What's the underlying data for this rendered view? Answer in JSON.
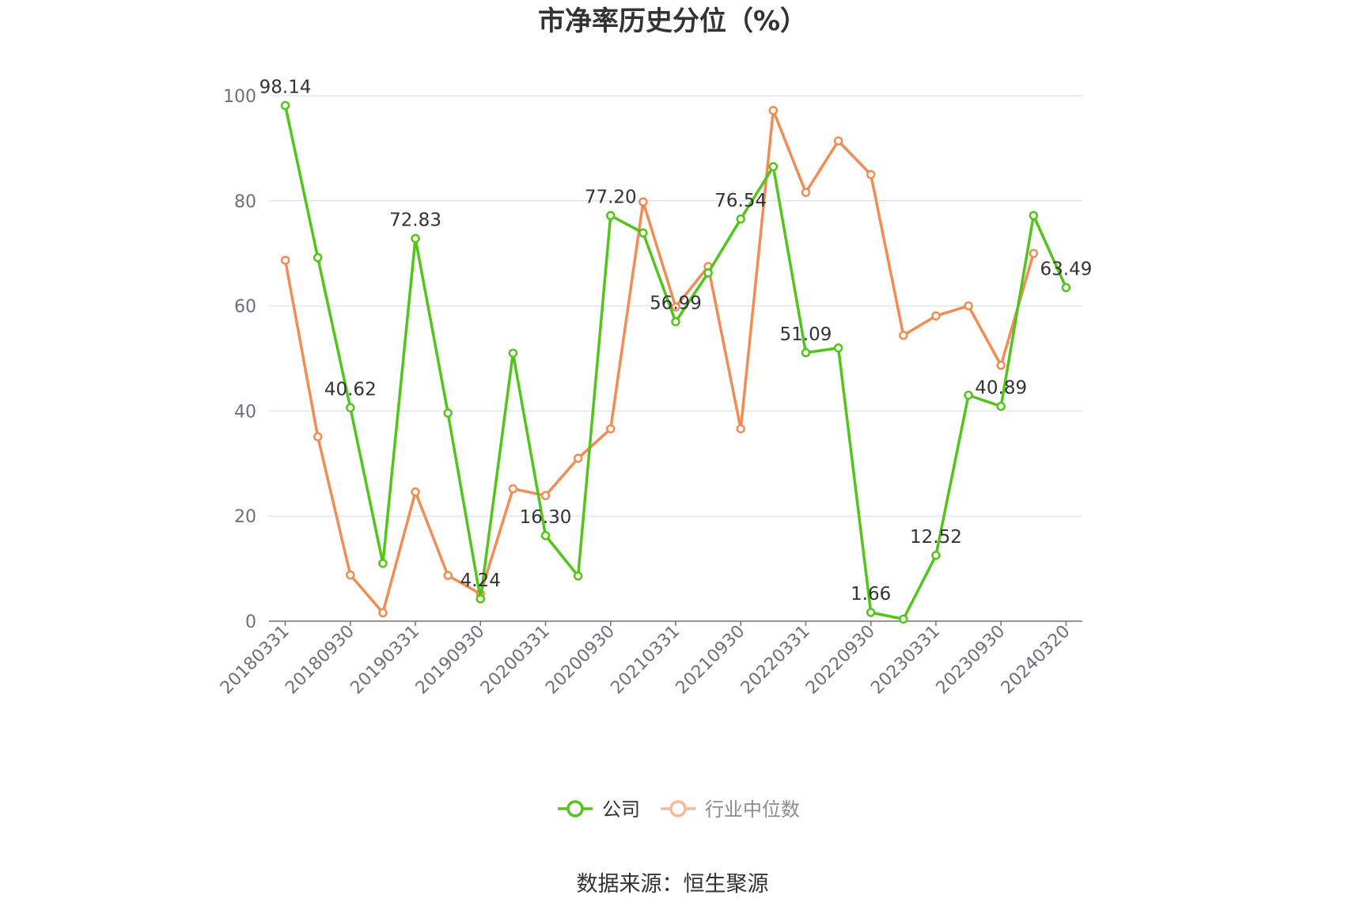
{
  "chart_data": {
    "type": "line",
    "title": "市净率历史分位（%）",
    "source": "数据来源：恒生聚源",
    "ylim": [
      0,
      100
    ],
    "yticks": [
      0,
      20,
      40,
      60,
      80,
      100
    ],
    "grid": true,
    "legend_position": "bottom-center",
    "x": [
      "20180331",
      "20180630",
      "20180930",
      "20181231",
      "20190331",
      "20190630",
      "20190930",
      "20191231",
      "20200331",
      "20200630",
      "20200930",
      "20201231",
      "20210331",
      "20210630",
      "20210930",
      "20211231",
      "20220331",
      "20220630",
      "20220930",
      "20221231",
      "20230331",
      "20230630",
      "20230930",
      "20231231",
      "20240320"
    ],
    "x_tick_labels": [
      "20180331",
      "20180930",
      "20190331",
      "20190930",
      "20200331",
      "20200930",
      "20210331",
      "20210930",
      "20220331",
      "20220930",
      "20230331",
      "20230930",
      "20240320"
    ],
    "series": [
      {
        "name": "公司",
        "color": "#52c41a",
        "values": [
          98.14,
          69.2,
          40.62,
          11.0,
          72.83,
          39.6,
          4.24,
          51.0,
          16.3,
          8.6,
          77.2,
          73.9,
          56.99,
          66.3,
          76.54,
          86.5,
          51.09,
          52.0,
          1.66,
          0.4,
          12.52,
          43.0,
          40.89,
          77.2,
          63.49
        ],
        "labels": [
          "98.14",
          "",
          "40.62",
          "",
          "72.83",
          "",
          "4.24",
          "",
          "16.30",
          "",
          "77.20",
          "",
          "56.99",
          "",
          "76.54",
          "",
          "51.09",
          "",
          "1.66",
          "",
          "12.52",
          "",
          "40.89",
          "",
          "63.49"
        ]
      },
      {
        "name": "行业中位数",
        "color": "#f28c55",
        "values": [
          68.7,
          35.1,
          8.8,
          1.6,
          24.6,
          8.7,
          5.2,
          25.2,
          23.9,
          31.0,
          36.6,
          79.8,
          59.8,
          67.5,
          36.6,
          97.2,
          81.6,
          91.4,
          85.0,
          54.4,
          58.1,
          60.0,
          48.7,
          70.0,
          null
        ]
      }
    ]
  }
}
